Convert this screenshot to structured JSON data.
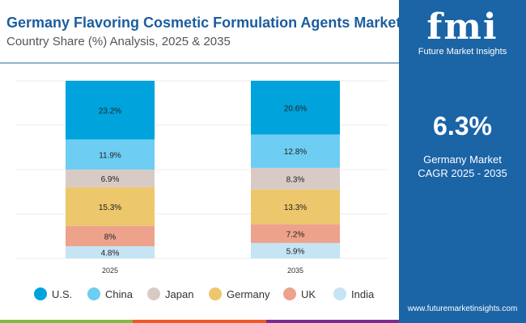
{
  "header": {
    "title": "Germany Flavoring Cosmetic Formulation Agents Market",
    "subtitle": "Country Share (%) Analysis, 2025 & 2035"
  },
  "brand": {
    "logo": "fmi",
    "name": "Future Market Insights",
    "url": "www.futuremarketinsights.com"
  },
  "kpi": {
    "value": "6.3%",
    "label1": "Germany Market",
    "label2": "CAGR 2025 - 2035"
  },
  "chart_data": {
    "type": "bar",
    "stacked": true,
    "grid": true,
    "legend": "bottom",
    "categories": [
      "2025",
      "2035"
    ],
    "series": [
      {
        "name": "U.S.",
        "color": "#00a3dc",
        "values": [
          23.2,
          20.6
        ],
        "labels": [
          "23.2%",
          "20.6%"
        ]
      },
      {
        "name": "China",
        "color": "#6dcdf2",
        "values": [
          11.9,
          12.8
        ],
        "labels": [
          "11.9%",
          "12.8%"
        ]
      },
      {
        "name": "Japan",
        "color": "#d8cbc6",
        "values": [
          6.9,
          8.3
        ],
        "labels": [
          "6.9%",
          "8.3%"
        ]
      },
      {
        "name": "Germany",
        "color": "#ecc76b",
        "values": [
          15.3,
          13.3
        ],
        "labels": [
          "15.3%",
          "13.3%"
        ]
      },
      {
        "name": "UK",
        "color": "#eda28b",
        "values": [
          8,
          7.2
        ],
        "labels": [
          "8%",
          "7.2%"
        ]
      },
      {
        "name": "India",
        "color": "#c5e4f4",
        "values": [
          4.8,
          5.9
        ],
        "labels": [
          "4.8%",
          "5.9%"
        ]
      }
    ]
  }
}
